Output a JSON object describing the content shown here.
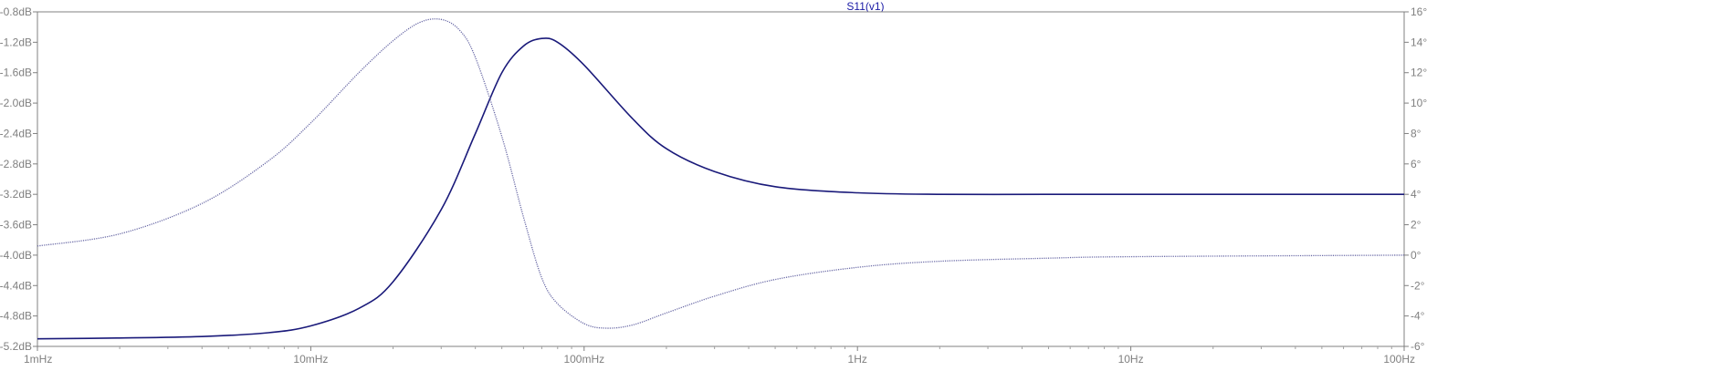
{
  "chart_data": {
    "type": "line",
    "title": "S11(v1)",
    "x_scale": "log",
    "xlim": [
      0.001,
      100
    ],
    "x_ticks": [
      {
        "value": 0.001,
        "label": "1mHz"
      },
      {
        "value": 0.01,
        "label": "10mHz"
      },
      {
        "value": 0.1,
        "label": "100mHz"
      },
      {
        "value": 1,
        "label": "1Hz"
      },
      {
        "value": 10,
        "label": "10Hz"
      },
      {
        "value": 100,
        "label": "100Hz"
      }
    ],
    "y_left": {
      "unit": "dB",
      "ylim": [
        -5.2,
        -0.8
      ],
      "ticks": [
        "-0.8dB",
        "-1.2dB",
        "-1.6dB",
        "-2.0dB",
        "-2.4dB",
        "-2.8dB",
        "-3.2dB",
        "-3.6dB",
        "-4.0dB",
        "-4.4dB",
        "-4.8dB",
        "-5.2dB"
      ],
      "tick_values": [
        -0.8,
        -1.2,
        -1.6,
        -2.0,
        -2.4,
        -2.8,
        -3.2,
        -3.6,
        -4.0,
        -4.4,
        -4.8,
        -5.2
      ]
    },
    "y_right": {
      "unit": "°",
      "ylim": [
        -6,
        16
      ],
      "ticks": [
        "16°",
        "14°",
        "12°",
        "10°",
        "8°",
        "6°",
        "4°",
        "2°",
        "0°",
        "-2°",
        "-4°",
        "-6°"
      ],
      "tick_values": [
        16,
        14,
        12,
        10,
        8,
        6,
        4,
        2,
        0,
        -2,
        -4,
        -6
      ]
    },
    "grid": false,
    "series": [
      {
        "axis": "left",
        "style": "solid",
        "color": "#1a1a7a",
        "x": [
          0.001,
          0.002,
          0.004,
          0.007,
          0.01,
          0.015,
          0.02,
          0.03,
          0.04,
          0.05,
          0.06,
          0.07,
          0.08,
          0.1,
          0.15,
          0.2,
          0.3,
          0.5,
          1,
          2,
          5,
          10,
          100
        ],
        "y": [
          -5.1,
          -5.09,
          -5.07,
          -5.02,
          -4.93,
          -4.7,
          -4.35,
          -3.4,
          -2.4,
          -1.6,
          -1.25,
          -1.15,
          -1.2,
          -1.5,
          -2.2,
          -2.6,
          -2.9,
          -3.1,
          -3.18,
          -3.2,
          -3.2,
          -3.2,
          -3.2
        ]
      },
      {
        "axis": "right",
        "style": "dotted",
        "color": "#6a6aa6",
        "x": [
          0.001,
          0.002,
          0.004,
          0.007,
          0.01,
          0.015,
          0.02,
          0.025,
          0.03,
          0.035,
          0.04,
          0.05,
          0.06,
          0.07,
          0.08,
          0.1,
          0.12,
          0.15,
          0.2,
          0.3,
          0.5,
          1,
          2,
          5,
          10,
          100
        ],
        "y": [
          0.6,
          1.4,
          3.4,
          6.2,
          8.7,
          12.0,
          14.1,
          15.3,
          15.5,
          14.8,
          13.0,
          7.8,
          2.5,
          -1.5,
          -3.2,
          -4.5,
          -4.8,
          -4.6,
          -3.8,
          -2.7,
          -1.6,
          -0.8,
          -0.4,
          -0.2,
          -0.1,
          0.0
        ]
      }
    ]
  }
}
